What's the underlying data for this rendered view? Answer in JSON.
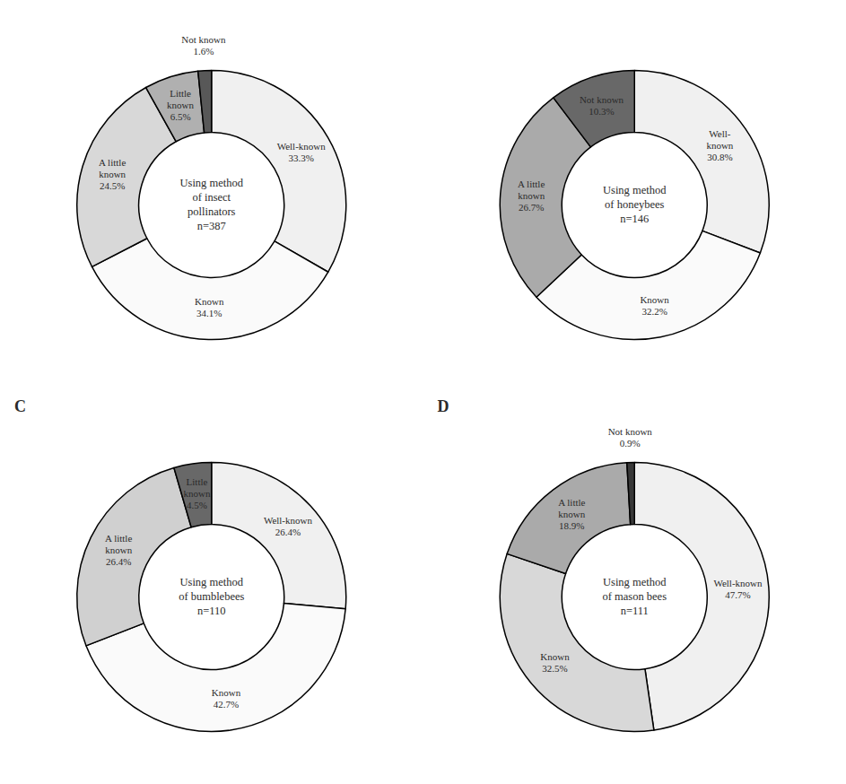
{
  "chart_data": [
    {
      "type": "pie",
      "title": "Using method\nof insect\npollinators\nn=387",
      "categories": [
        "Well-known",
        "Known",
        "A little\nknown",
        "Little\nknown",
        "Not known"
      ],
      "values": [
        33.3,
        34.1,
        24.5,
        6.5,
        1.6
      ],
      "value_labels": [
        "33.3%",
        "34.1%",
        "24.5%",
        "6.5%",
        "1.6%"
      ],
      "colors": [
        "#f0f0f0",
        "#fafafa",
        "#d8d8d8",
        "#b0b0b0",
        "#585858"
      ],
      "data_labels": true
    },
    {
      "type": "pie",
      "title": "Using method\nof honeybees\nn=146",
      "categories": [
        "Well-\nknown",
        "Known",
        "A little\nknown",
        "Not known"
      ],
      "values": [
        30.8,
        32.2,
        26.7,
        10.3
      ],
      "value_labels": [
        "30.8%",
        "32.2%",
        "26.7%",
        "10.3%"
      ],
      "colors": [
        "#f0f0f0",
        "#fafafa",
        "#aaaaaa",
        "#686868"
      ],
      "data_labels": true
    },
    {
      "type": "pie",
      "title": "Using method\nof bumblebees\nn=110",
      "categories": [
        "Well-known",
        "Known",
        "A little\nknown",
        "Little\nknown"
      ],
      "values": [
        26.4,
        42.7,
        26.4,
        4.5
      ],
      "value_labels": [
        "26.4%",
        "42.7%",
        "26.4%",
        "4.5%"
      ],
      "colors": [
        "#f0f0f0",
        "#fafafa",
        "#d0d0d0",
        "#686868"
      ],
      "annotations": [
        "C"
      ],
      "data_labels": true
    },
    {
      "type": "pie",
      "title": "Using method\nof mason bees\nn=111",
      "categories": [
        "Well-known",
        "Known",
        "A little\nknown",
        "Not known"
      ],
      "values": [
        47.7,
        32.5,
        18.9,
        0.9
      ],
      "value_labels": [
        "47.7%",
        "32.5%",
        "18.9%",
        "0.9%"
      ],
      "colors": [
        "#f0f0f0",
        "#d8d8d8",
        "#aaaaaa",
        "#383838"
      ],
      "annotations": [
        "D"
      ],
      "data_labels": true
    }
  ]
}
